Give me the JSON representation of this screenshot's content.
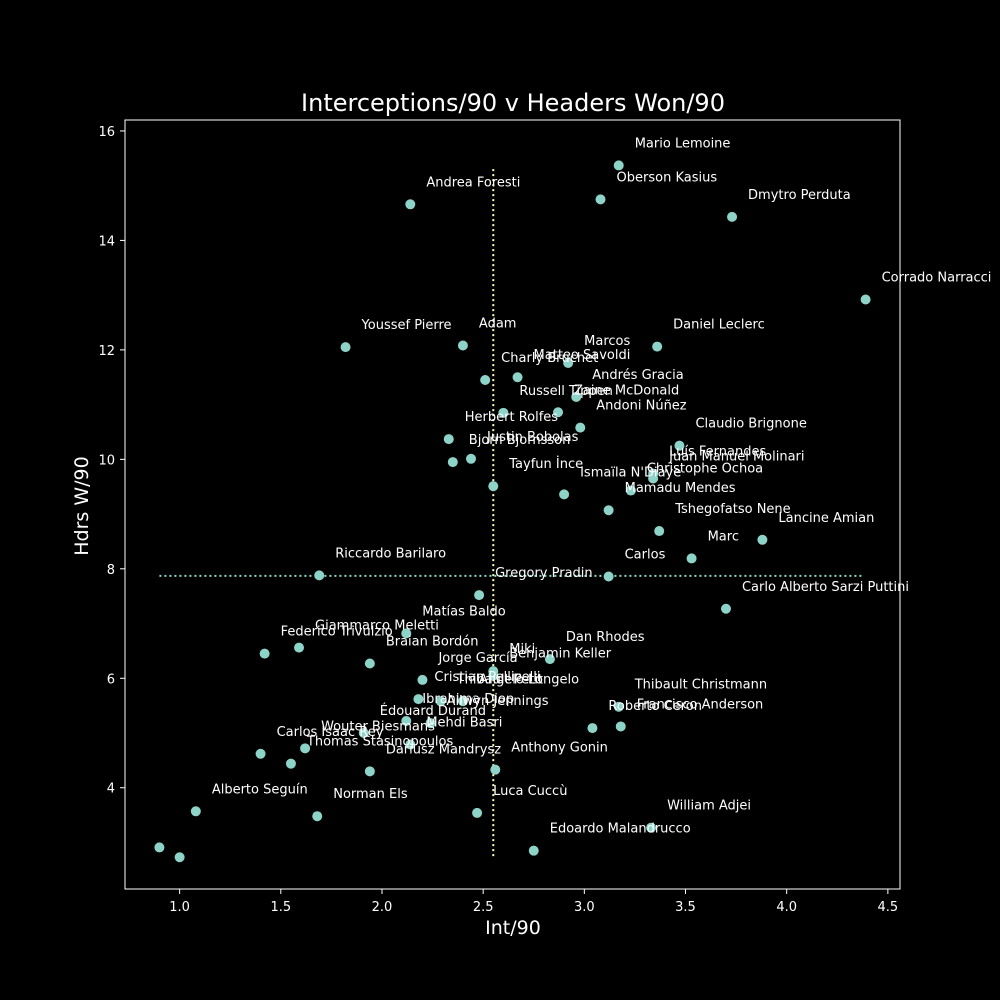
{
  "chart_data": {
    "type": "scatter",
    "title": "Interceptions/90 v Headers Won/90",
    "xlabel": "Int/90",
    "ylabel": "Hdrs W/90",
    "xlim": [
      0.73,
      4.56
    ],
    "ylim": [
      2.15,
      16.2
    ],
    "xticks": [
      1.0,
      1.5,
      2.0,
      2.5,
      3.0,
      3.5,
      4.0,
      4.5
    ],
    "yticks": [
      4,
      6,
      8,
      10,
      12,
      14,
      16
    ],
    "xtick_labels": [
      "1.0",
      "1.5",
      "2.0",
      "2.5",
      "3.0",
      "3.5",
      "4.0",
      "4.5"
    ],
    "ytick_labels": [
      "4",
      "6",
      "8",
      "10",
      "12",
      "14",
      "16"
    ],
    "grid": false,
    "reference_lines": {
      "vertical_x": 2.55,
      "vertical_y_range": [
        2.75,
        15.35
      ],
      "horizontal_y": 7.87,
      "horizontal_x_range": [
        0.9,
        4.38
      ]
    },
    "colors": {
      "background": "#000000",
      "points": "#8dd3c7",
      "text": "#ffffff",
      "vertical_line": "#ffffb3",
      "horizontal_line": "#8dd3c7"
    },
    "points": [
      {
        "label": "Mario Lemoine",
        "x": 3.17,
        "y": 15.37
      },
      {
        "label": "Oberson Kasius",
        "x": 3.08,
        "y": 14.75
      },
      {
        "label": "Andrea Foresti",
        "x": 2.14,
        "y": 14.66
      },
      {
        "label": "Dmytro Perduta",
        "x": 3.73,
        "y": 14.43
      },
      {
        "label": "Corrado Narracci",
        "x": 4.39,
        "y": 12.92
      },
      {
        "label": "Youssef Pierre",
        "x": 1.82,
        "y": 12.05
      },
      {
        "label": "Adam",
        "x": 2.4,
        "y": 12.08
      },
      {
        "label": "Daniel Leclerc",
        "x": 3.36,
        "y": 12.06
      },
      {
        "label": "Marcos",
        "x": 2.92,
        "y": 11.76
      },
      {
        "label": "Matteo Savoldi",
        "x": 2.67,
        "y": 11.5
      },
      {
        "label": "Charly Bruchet",
        "x": 2.51,
        "y": 11.45
      },
      {
        "label": "Andrés Gracia",
        "x": 2.96,
        "y": 11.14
      },
      {
        "label": "Russell Tippen",
        "x": 2.6,
        "y": 10.85
      },
      {
        "label": "Zaine McDonald",
        "x": 2.87,
        "y": 10.86
      },
      {
        "label": "Andoni Núñez",
        "x": 2.98,
        "y": 10.58
      },
      {
        "label": "Herbert Rolfes",
        "x": 2.33,
        "y": 10.37
      },
      {
        "label": "Claudio Brignone",
        "x": 3.47,
        "y": 10.25
      },
      {
        "label": "Justin Bobolas",
        "x": 2.44,
        "y": 10.01
      },
      {
        "label": "Bjorn Bjornsson",
        "x": 2.35,
        "y": 9.95
      },
      {
        "label": "Luís Fernandes",
        "x": 3.34,
        "y": 9.74
      },
      {
        "label": "Juan Manuel Molinari",
        "x": 3.34,
        "y": 9.65
      },
      {
        "label": "Tayfun İnce",
        "x": 2.55,
        "y": 9.51
      },
      {
        "label": "Ismaïla N'Diaye",
        "x": 2.9,
        "y": 9.36
      },
      {
        "label": "Christophe Ochoa",
        "x": 3.23,
        "y": 9.43
      },
      {
        "label": "Mamadu Mendes",
        "x": 3.12,
        "y": 9.07
      },
      {
        "label": "Tshegofatso Nene",
        "x": 3.37,
        "y": 8.69
      },
      {
        "label": "Lancine Amian",
        "x": 3.88,
        "y": 8.53
      },
      {
        "label": "Marc",
        "x": 3.53,
        "y": 8.19
      },
      {
        "label": "Riccardo Barilaro",
        "x": 1.69,
        "y": 7.88
      },
      {
        "label": "Carlos",
        "x": 3.12,
        "y": 7.86
      },
      {
        "label": "Carlo Alberto Sarzi Puttini",
        "x": 3.7,
        "y": 7.27
      },
      {
        "label": "Gregory Pradin",
        "x": 2.48,
        "y": 7.52
      },
      {
        "label": "Matías Baldo",
        "x": 2.12,
        "y": 6.82
      },
      {
        "label": "Giammarco Meletti",
        "x": 1.59,
        "y": 6.56
      },
      {
        "label": "Federico Trivulzio",
        "x": 1.42,
        "y": 6.45
      },
      {
        "label": "Dan Rhodes",
        "x": 2.83,
        "y": 6.35
      },
      {
        "label": "Braian Bordón",
        "x": 1.94,
        "y": 6.27
      },
      {
        "label": "Miki",
        "x": 2.55,
        "y": 6.13
      },
      {
        "label": "Jorge García",
        "x": 2.2,
        "y": 5.97
      },
      {
        "label": "Benjamin Keller",
        "x": 2.55,
        "y": 6.05
      },
      {
        "label": "Thibault Petit",
        "x": 2.29,
        "y": 5.58
      },
      {
        "label": "Cristian Pellicelli",
        "x": 2.18,
        "y": 5.62
      },
      {
        "label": "Angelo Longelo",
        "x": 2.4,
        "y": 5.58
      },
      {
        "label": "Thibault Christmann",
        "x": 3.17,
        "y": 5.48
      },
      {
        "label": "Roberto Ceron",
        "x": 3.04,
        "y": 5.09
      },
      {
        "label": "Francisco Anderson",
        "x": 3.18,
        "y": 5.12
      },
      {
        "label": "Ibrahima Diop",
        "x": 2.12,
        "y": 5.22
      },
      {
        "label": "Ailwyn Jennings",
        "x": 2.24,
        "y": 5.18
      },
      {
        "label": "Édouard Durand",
        "x": 1.91,
        "y": 5.0
      },
      {
        "label": "Wouter Biesmans",
        "x": 1.62,
        "y": 4.72
      },
      {
        "label": "Carlos Isaac Rey",
        "x": 1.4,
        "y": 4.62
      },
      {
        "label": "Mehdi Basri",
        "x": 2.14,
        "y": 4.79
      },
      {
        "label": "Anthony Gonin",
        "x": 2.56,
        "y": 4.33
      },
      {
        "label": "Thomas Stasinopoulos",
        "x": 1.55,
        "y": 4.44
      },
      {
        "label": "Dariusz Mandrysz",
        "x": 1.94,
        "y": 4.3
      },
      {
        "label": "Luca Cuccù",
        "x": 2.47,
        "y": 3.54
      },
      {
        "label": "William Adjei",
        "x": 3.33,
        "y": 3.27
      },
      {
        "label": "Alberto Seguín",
        "x": 1.08,
        "y": 3.57
      },
      {
        "label": "Norman Els",
        "x": 1.68,
        "y": 3.48
      },
      {
        "label": "Edoardo Malandrucco",
        "x": 2.75,
        "y": 2.85
      },
      {
        "label": "",
        "x": 0.9,
        "y": 2.91
      },
      {
        "label": "",
        "x": 1.0,
        "y": 2.73
      }
    ]
  }
}
